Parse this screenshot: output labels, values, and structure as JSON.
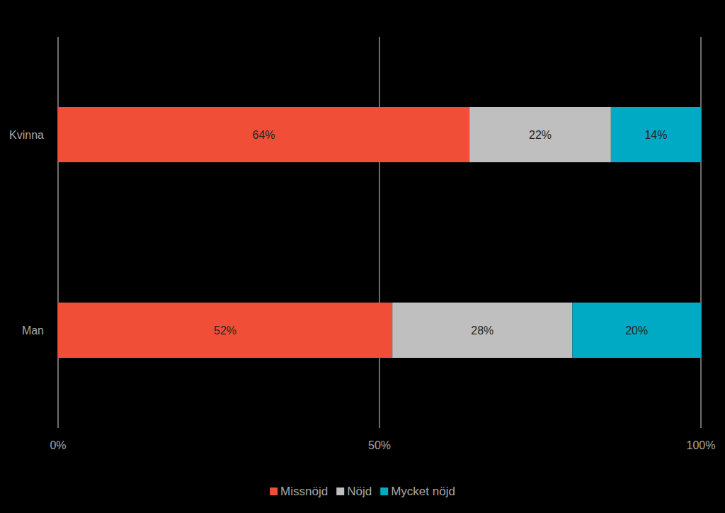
{
  "chart_data": {
    "type": "bar",
    "orientation": "horizontal",
    "stacked": true,
    "data_labels": true,
    "grid": true,
    "legend": "bottom",
    "categories": [
      "Kvinna",
      "Man"
    ],
    "series": [
      {
        "name": "Missnöjd",
        "color": "#f04e37",
        "values": [
          64,
          52
        ],
        "value_labels": [
          "64%",
          "52%"
        ]
      },
      {
        "name": "Nöjd",
        "color": "#bfbfbf",
        "values": [
          22,
          28
        ],
        "value_labels": [
          "22%",
          "28%"
        ]
      },
      {
        "name": "Mycket nöjd",
        "color": "#00a9c4",
        "values": [
          14,
          20
        ],
        "value_labels": [
          "14%",
          "20%"
        ]
      }
    ],
    "xlim": [
      0,
      100
    ],
    "xticks": [
      {
        "value": 0,
        "label": "0%"
      },
      {
        "value": 50,
        "label": "50%"
      },
      {
        "value": 100,
        "label": "100%"
      }
    ]
  }
}
